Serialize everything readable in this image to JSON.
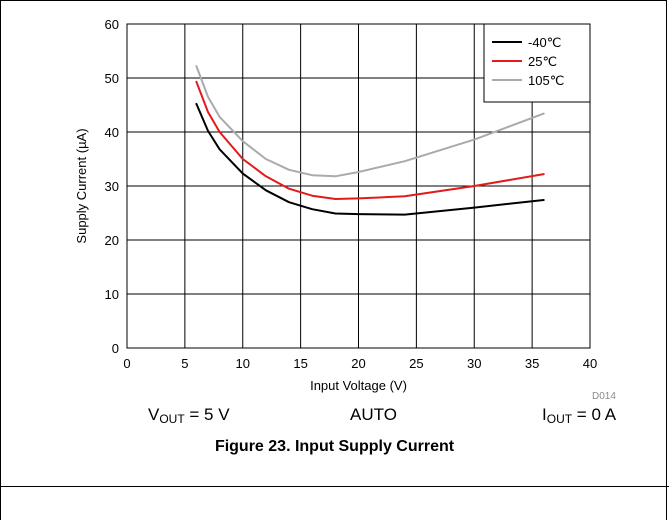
{
  "chart_data": {
    "type": "line",
    "xlabel": "Input Voltage (V)",
    "ylabel": "Supply Current (µA)",
    "xlim": [
      0,
      40
    ],
    "ylim": [
      0,
      60
    ],
    "xticks": [
      0,
      5,
      10,
      15,
      20,
      25,
      30,
      35,
      40
    ],
    "yticks": [
      0,
      10,
      20,
      30,
      40,
      50,
      60
    ],
    "grid": true,
    "legend_position": "top-right",
    "series": [
      {
        "name": "-40℃",
        "color": "#000000",
        "x": [
          6,
          7,
          8,
          10,
          12,
          14,
          16,
          18,
          20,
          24,
          30,
          36
        ],
        "y": [
          45.2,
          40.2,
          36.8,
          32.3,
          29.2,
          27.0,
          25.7,
          24.9,
          24.8,
          24.7,
          26.0,
          27.4
        ]
      },
      {
        "name": "25℃",
        "color": "#e31a1c",
        "x": [
          6,
          7,
          8,
          10,
          12,
          14,
          16,
          18,
          20,
          24,
          30,
          36
        ],
        "y": [
          49.3,
          43.7,
          40.0,
          35.0,
          31.8,
          29.5,
          28.2,
          27.6,
          27.7,
          28.1,
          30.0,
          32.2
        ]
      },
      {
        "name": "105℃",
        "color": "#aaaaaa",
        "x": [
          6,
          7,
          8,
          10,
          12,
          14,
          16,
          18,
          20,
          24,
          30,
          36
        ],
        "y": [
          52.2,
          46.5,
          42.8,
          38.3,
          35.0,
          33.0,
          32.0,
          31.8,
          32.6,
          34.6,
          38.6,
          43.4
        ]
      }
    ]
  },
  "conditions": {
    "vout_main": "V",
    "vout_sub": "OUT",
    "vout_value": " = 5 V",
    "mode": "AUTO",
    "iout_main": "I",
    "iout_sub": "OUT",
    "iout_value": " = 0 A"
  },
  "doc_id": "D014",
  "caption": "Figure 23. Input Supply Current"
}
